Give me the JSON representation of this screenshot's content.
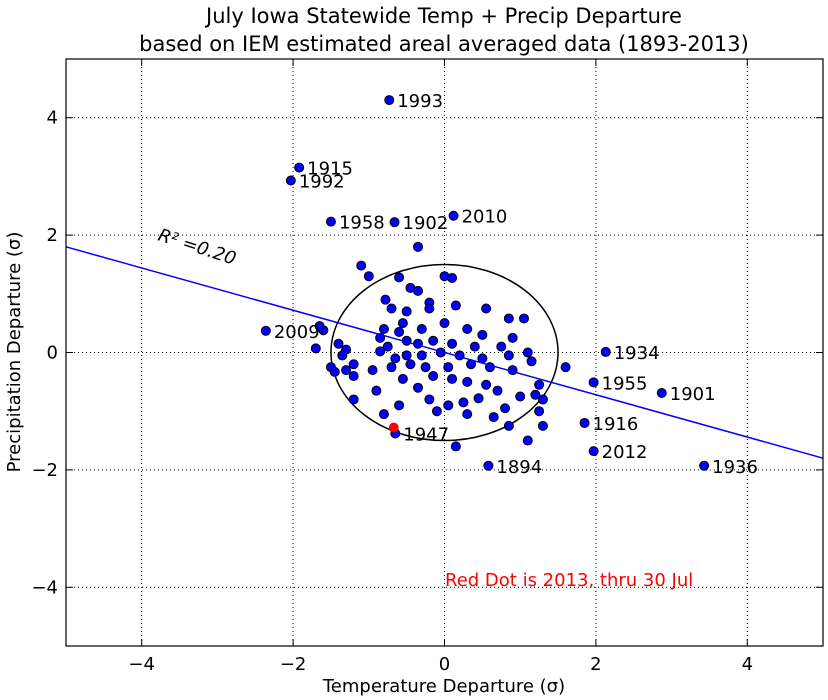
{
  "chart_data": {
    "type": "scatter",
    "title": "July Iowa Statewide Temp + Precip Departure",
    "subtitle": "based on IEM estimated areal averaged data (1893-2013)",
    "xlabel": "Temperature Departure (σ)",
    "ylabel": "Precipitation Departure (σ)",
    "xlim": [
      -5,
      5
    ],
    "ylim": [
      -5,
      5
    ],
    "xticks": [
      -4,
      -2,
      0,
      2,
      4
    ],
    "yticks": [
      -4,
      -2,
      0,
      2,
      4
    ],
    "xtick_labels": [
      "−4",
      "−2",
      "0",
      "2",
      "4"
    ],
    "ytick_labels": [
      "−4",
      "−2",
      "0",
      "2",
      "4"
    ],
    "grid": true,
    "colors": {
      "points": "#0000ff",
      "highlight": "#ff0000",
      "fit_line": "#0000ff",
      "note": "#ff0000"
    },
    "fit_line": {
      "x": [
        -5,
        5
      ],
      "y": [
        1.8,
        -1.8
      ]
    },
    "r2_label": "R² =0.20",
    "ellipse": {
      "cx": 0,
      "cy": 0,
      "rx": 1.5,
      "ry": 1.5
    },
    "labeled_points": [
      {
        "year": "1993",
        "x": -0.73,
        "y": 4.3
      },
      {
        "year": "1915",
        "x": -1.92,
        "y": 3.15
      },
      {
        "year": "1992",
        "x": -2.03,
        "y": 2.93
      },
      {
        "year": "1958",
        "x": -1.5,
        "y": 2.23
      },
      {
        "year": "1902",
        "x": -0.66,
        "y": 2.22
      },
      {
        "year": "2010",
        "x": 0.12,
        "y": 2.33
      },
      {
        "year": "2009",
        "x": -2.36,
        "y": 0.37
      },
      {
        "year": "1934",
        "x": 2.13,
        "y": 0.01
      },
      {
        "year": "1955",
        "x": 1.97,
        "y": -0.51
      },
      {
        "year": "1901",
        "x": 2.87,
        "y": -0.69
      },
      {
        "year": "1916",
        "x": 1.85,
        "y": -1.2
      },
      {
        "year": "2012",
        "x": 1.97,
        "y": -1.68
      },
      {
        "year": "1947",
        "x": -0.65,
        "y": -1.38
      },
      {
        "year": "1894",
        "x": 0.58,
        "y": -1.93
      },
      {
        "year": "1936",
        "x": 3.43,
        "y": -1.93
      }
    ],
    "highlight_point": {
      "x": -0.67,
      "y": -1.28
    },
    "points": [
      [
        -1.1,
        1.48
      ],
      [
        -1.0,
        1.3
      ],
      [
        -0.35,
        1.8
      ],
      [
        0.0,
        1.3
      ],
      [
        0.1,
        1.27
      ],
      [
        -0.78,
        0.9
      ],
      [
        -0.6,
        1.28
      ],
      [
        -0.45,
        1.1
      ],
      [
        -0.35,
        1.05
      ],
      [
        -0.2,
        0.85
      ],
      [
        -0.2,
        0.75
      ],
      [
        -0.7,
        0.75
      ],
      [
        -0.5,
        0.7
      ],
      [
        -0.55,
        0.5
      ],
      [
        0.15,
        0.8
      ],
      [
        0.55,
        0.75
      ],
      [
        0.85,
        0.58
      ],
      [
        1.05,
        0.58
      ],
      [
        -0.6,
        0.35
      ],
      [
        -0.8,
        0.4
      ],
      [
        -0.3,
        0.4
      ],
      [
        0.0,
        0.5
      ],
      [
        0.3,
        0.4
      ],
      [
        0.5,
        0.3
      ],
      [
        -1.6,
        0.38
      ],
      [
        -1.65,
        0.45
      ],
      [
        -1.4,
        0.15
      ],
      [
        -1.3,
        0.05
      ],
      [
        -1.7,
        0.07
      ],
      [
        -0.85,
        0.25
      ],
      [
        -0.75,
        0.1
      ],
      [
        -0.5,
        0.2
      ],
      [
        -0.35,
        0.15
      ],
      [
        -0.15,
        0.2
      ],
      [
        0.1,
        0.15
      ],
      [
        0.4,
        0.1
      ],
      [
        0.75,
        0.1
      ],
      [
        0.9,
        0.25
      ],
      [
        1.1,
        0.0
      ],
      [
        -1.35,
        -0.05
      ],
      [
        -1.5,
        -0.25
      ],
      [
        -1.2,
        -0.2
      ],
      [
        -1.45,
        -0.33
      ],
      [
        -1.3,
        -0.3
      ],
      [
        -1.2,
        -0.4
      ],
      [
        -0.85,
        0.02
      ],
      [
        -0.65,
        -0.1
      ],
      [
        -0.5,
        -0.05
      ],
      [
        -0.3,
        -0.05
      ],
      [
        -0.05,
        0.0
      ],
      [
        0.2,
        -0.05
      ],
      [
        0.5,
        -0.1
      ],
      [
        0.85,
        -0.05
      ],
      [
        1.15,
        -0.15
      ],
      [
        1.6,
        -0.25
      ],
      [
        -0.95,
        -0.3
      ],
      [
        -0.7,
        -0.25
      ],
      [
        -0.45,
        -0.2
      ],
      [
        -0.25,
        -0.25
      ],
      [
        0.05,
        -0.25
      ],
      [
        0.35,
        -0.2
      ],
      [
        0.6,
        -0.25
      ],
      [
        0.9,
        -0.3
      ],
      [
        1.25,
        -0.55
      ],
      [
        -1.2,
        -0.8
      ],
      [
        -0.9,
        -0.65
      ],
      [
        -0.55,
        -0.45
      ],
      [
        -0.35,
        -0.6
      ],
      [
        -0.15,
        -0.4
      ],
      [
        0.1,
        -0.45
      ],
      [
        0.3,
        -0.5
      ],
      [
        0.55,
        -0.55
      ],
      [
        0.7,
        -0.65
      ],
      [
        1.2,
        -0.72
      ],
      [
        1.3,
        -0.8
      ],
      [
        -0.8,
        -1.05
      ],
      [
        -0.6,
        -0.9
      ],
      [
        -0.2,
        -0.8
      ],
      [
        0.05,
        -0.9
      ],
      [
        0.25,
        -0.85
      ],
      [
        0.45,
        -0.78
      ],
      [
        0.8,
        -0.95
      ],
      [
        1.0,
        -0.75
      ],
      [
        1.25,
        -1.0
      ],
      [
        -0.1,
        -1.0
      ],
      [
        0.3,
        -1.05
      ],
      [
        0.65,
        -1.1
      ],
      [
        0.85,
        -1.25
      ],
      [
        1.3,
        -1.25
      ],
      [
        0.15,
        -1.6
      ],
      [
        1.1,
        -1.5
      ]
    ],
    "annotation": "Red Dot is 2013, thru 30 Jul"
  }
}
